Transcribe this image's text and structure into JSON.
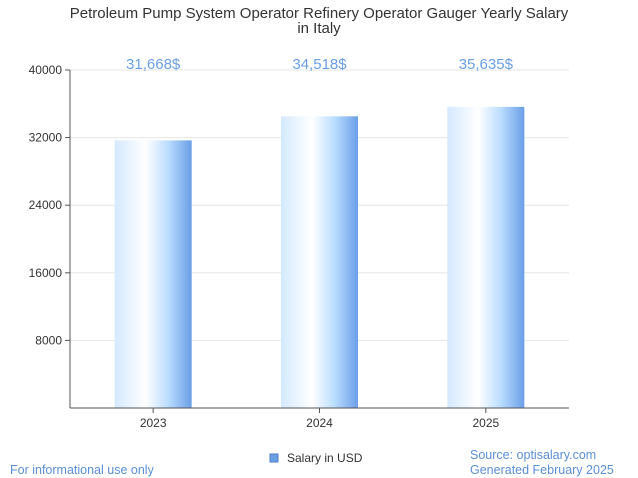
{
  "chart_data": {
    "type": "bar",
    "title_lines": [
      "Petroleum Pump System Operator Refinery Operator Gauger Yearly Salary",
      "in Italy"
    ],
    "categories": [
      "2023",
      "2024",
      "2025"
    ],
    "series": [
      {
        "name": "Salary in USD",
        "values": [
          31668,
          34518,
          35635
        ],
        "data_labels": [
          "31,668$",
          "34,518$",
          "35,635$"
        ]
      }
    ],
    "y_ticks": [
      "8000",
      "16000",
      "24000",
      "32000",
      "40000"
    ],
    "ylim": [
      0,
      40000
    ],
    "grid": true,
    "legend_position": "bottom-center",
    "colors": {
      "bar_light": "#ffffff",
      "bar_mid": "#b9dcff",
      "bar_dark": "#6a9ee6",
      "grid": "#e6e6e6",
      "axis": "#555555",
      "label": "#6a9ee6"
    }
  },
  "footer": {
    "left": "For informational use only",
    "source": "Source: optisalary.com",
    "generated": "Generated February 2025"
  }
}
